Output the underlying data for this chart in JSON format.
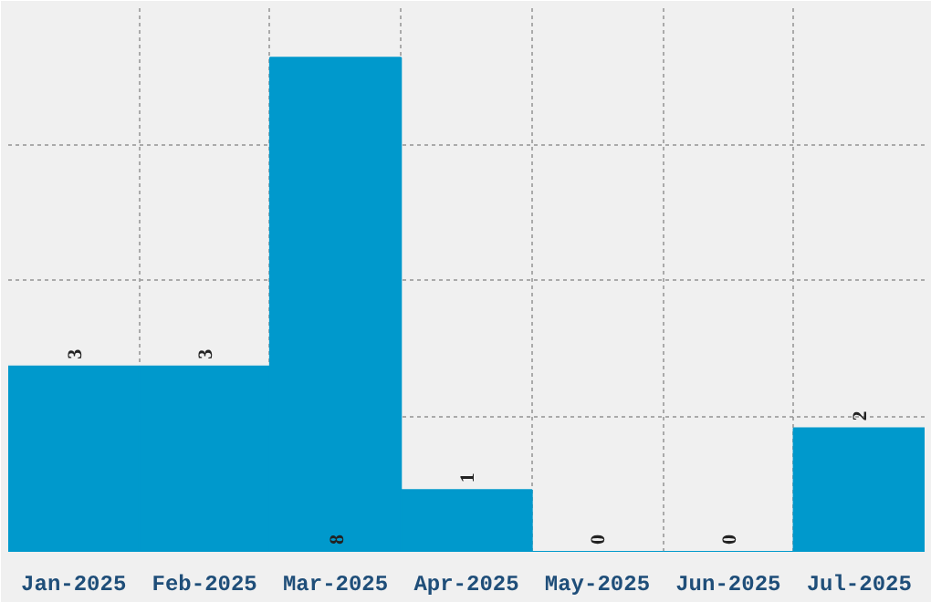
{
  "chart_data": {
    "type": "bar",
    "categories": [
      "Jan-2025",
      "Feb-2025",
      "Mar-2025",
      "Apr-2025",
      "May-2025",
      "Jun-2025",
      "Jul-2025"
    ],
    "values": [
      3,
      3,
      8,
      1,
      0,
      0,
      2
    ],
    "color": "#0099cc",
    "data_labels": true,
    "ylim": [
      0,
      8.8
    ],
    "yticks": [
      {
        "value": 2.2,
        "label": null
      },
      {
        "value": 4.4,
        "label": null
      },
      {
        "value": 6.6,
        "label": null
      },
      {
        "value": 8.8,
        "label": null
      }
    ],
    "grid": true,
    "tick_labels": "x"
  }
}
